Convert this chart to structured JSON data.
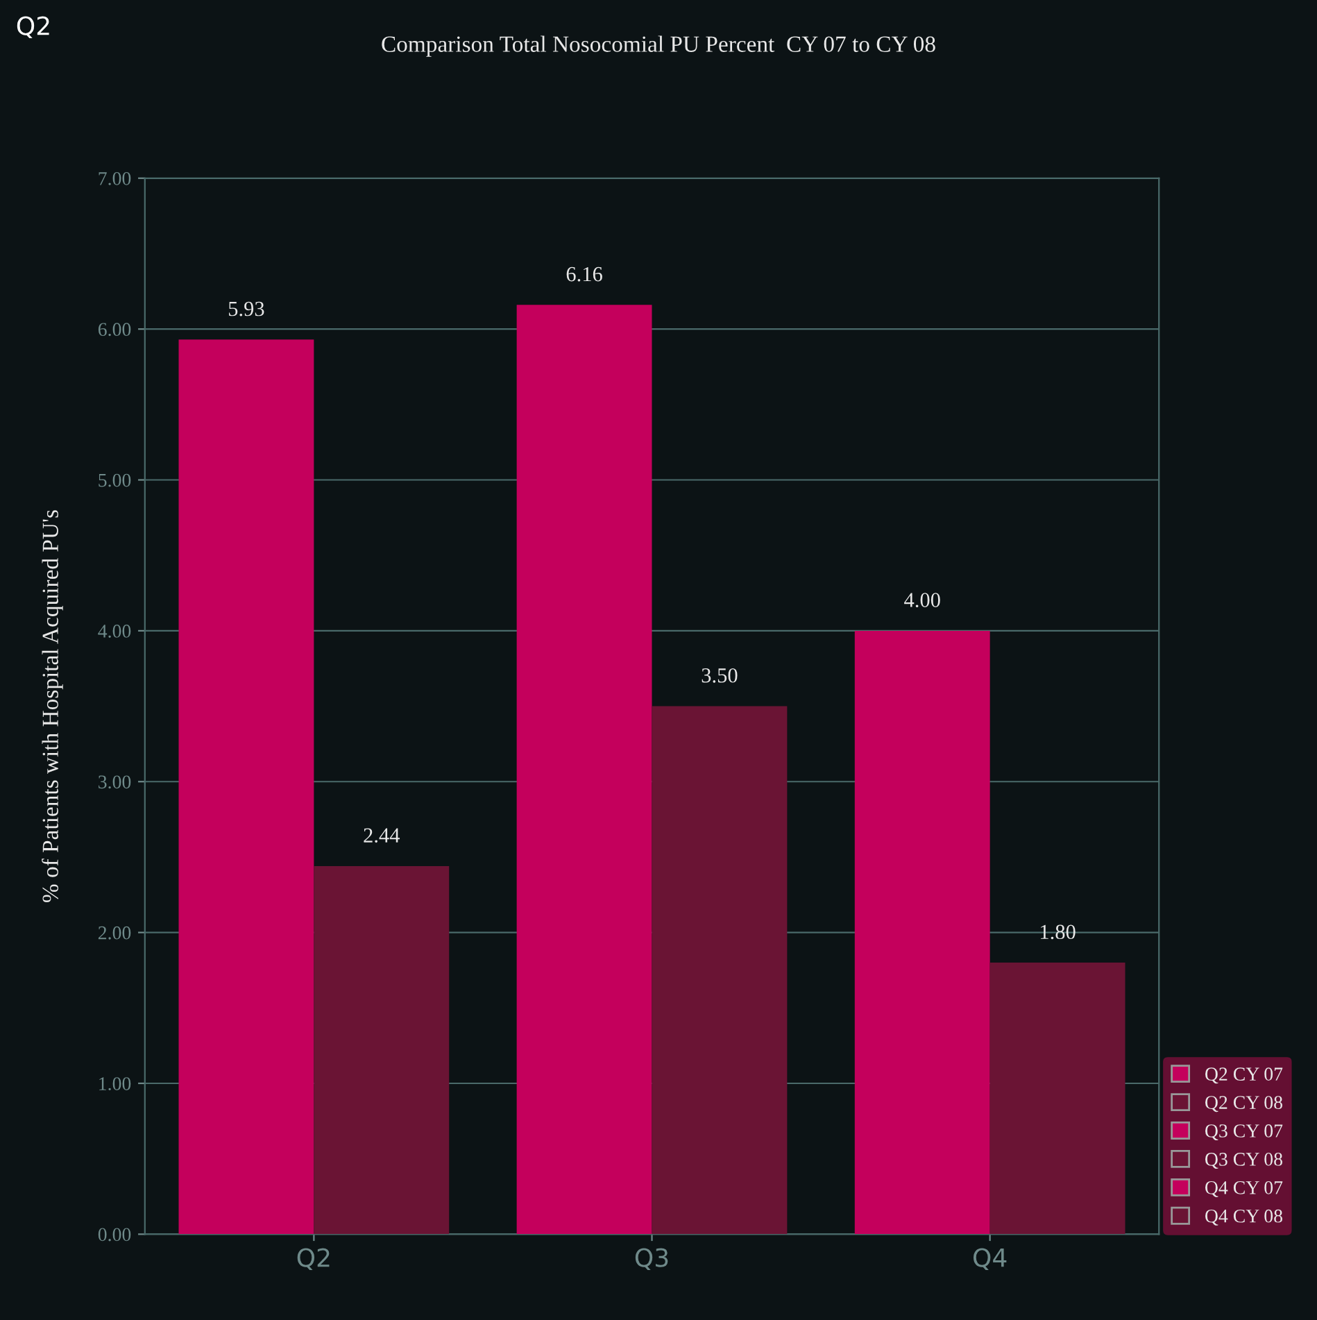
{
  "chart_data": {
    "type": "bar",
    "title": "Comparison Total Nosocomial PU Percent  CY 07 to CY 08",
    "ylabel": "% of Patients with Hospital Acquired PU's",
    "annotations": [
      "Q2"
    ],
    "categories": [
      "Q2",
      "Q3",
      "Q4"
    ],
    "series": [
      {
        "name": "Q2 CY 07",
        "color": "#c4005c",
        "values": [
          5.93,
          null,
          null
        ],
        "value_labels": [
          "5.93",
          null,
          null
        ]
      },
      {
        "name": "Q2 CY 08",
        "color": "#6a1434",
        "values": [
          2.44,
          null,
          null
        ],
        "value_labels": [
          "2.44",
          null,
          null
        ]
      },
      {
        "name": "Q3 CY 07",
        "color": "#c4005c",
        "values": [
          null,
          6.16,
          null
        ],
        "value_labels": [
          null,
          "6.16",
          null
        ]
      },
      {
        "name": "Q3 CY 08",
        "color": "#6a1434",
        "values": [
          null,
          3.5,
          null
        ],
        "value_labels": [
          null,
          "3.50",
          null
        ]
      },
      {
        "name": "Q4 CY 07",
        "color": "#c4005c",
        "values": [
          null,
          null,
          4.0
        ],
        "value_labels": [
          null,
          null,
          "4.00"
        ]
      },
      {
        "name": "Q4 CY 08",
        "color": "#6a1434",
        "values": [
          null,
          null,
          1.8
        ],
        "value_labels": [
          null,
          null,
          "1.80"
        ]
      }
    ],
    "ylim": [
      0,
      7
    ],
    "yticks": [
      {
        "value": 0,
        "label": "0.00"
      },
      {
        "value": 1,
        "label": "1.00"
      },
      {
        "value": 2,
        "label": "2.00"
      },
      {
        "value": 3,
        "label": "3.00"
      },
      {
        "value": 4,
        "label": "4.00"
      },
      {
        "value": 5,
        "label": "5.00"
      },
      {
        "value": 6,
        "label": "6.00"
      },
      {
        "value": 7,
        "label": "7.00"
      }
    ],
    "grid": "y",
    "legend": "bottom right"
  }
}
